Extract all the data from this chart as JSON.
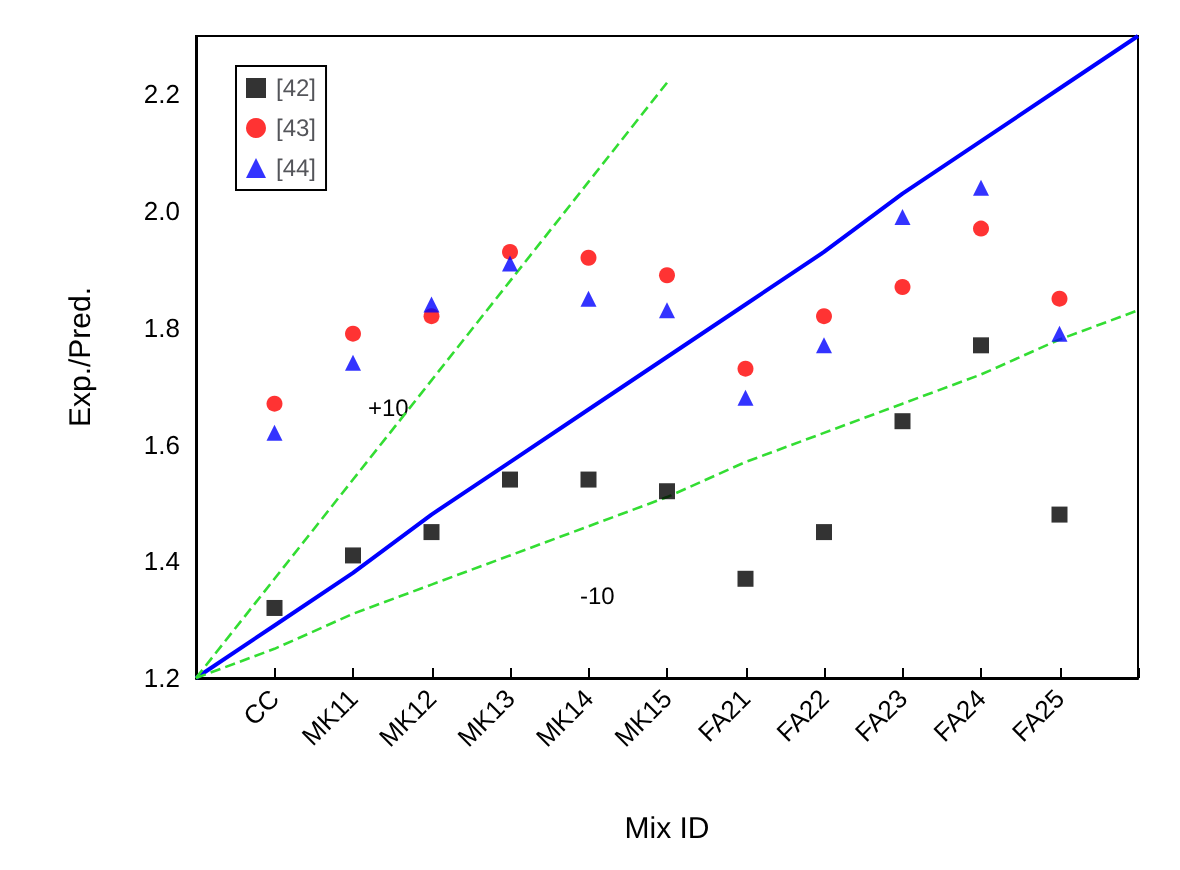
{
  "chart_data": {
    "type": "scatter",
    "xlabel": "Mix ID",
    "ylabel": "Exp./Pred.",
    "categories": [
      null,
      "CC",
      "MK11",
      "MK12",
      "MK13",
      "MK14",
      "MK15",
      "FA21",
      "FA22",
      "FA23",
      "FA24",
      "FA25",
      null
    ],
    "ylim": [
      1.2,
      2.3
    ],
    "yticks": [
      1.2,
      1.4,
      1.6,
      1.8,
      {
        "value": 2,
        "label": "2.0"
      },
      2.2
    ],
    "grid": false,
    "legend": "top left",
    "series": [
      {
        "name": "[42]",
        "color": "#000000",
        "marker": "square",
        "values": [
          null,
          1.32,
          1.41,
          1.45,
          1.54,
          1.54,
          1.52,
          1.37,
          1.45,
          1.64,
          1.77,
          1.48,
          null
        ]
      },
      {
        "name": "[43]",
        "color": "#ff0000",
        "marker": "circle",
        "values": [
          null,
          1.67,
          1.79,
          1.82,
          1.93,
          1.92,
          1.89,
          1.73,
          1.82,
          1.87,
          1.97,
          1.85,
          null
        ]
      },
      {
        "name": "[44]",
        "color": "#0000ff",
        "marker": "triangle",
        "values": [
          null,
          1.62,
          1.74,
          1.84,
          1.91,
          1.85,
          1.83,
          1.68,
          1.77,
          1.99,
          2.04,
          1.79,
          null
        ]
      },
      {
        "type": "line",
        "color": "#0000ff",
        "line_style": "solid",
        "marker": "none",
        "values": [
          1.2,
          1.29,
          1.38,
          1.48,
          1.57,
          1.66,
          1.75,
          1.84,
          1.93,
          2.03,
          2.12,
          2.21,
          2.3
        ]
      },
      {
        "type": "line",
        "color": "#33dd33",
        "line_style": "dashed",
        "marker": "none",
        "values": [
          1.2,
          1.37,
          1.54,
          1.71,
          1.88,
          2.05,
          2.22,
          null,
          null,
          null,
          null,
          null,
          null
        ]
      },
      {
        "type": "line",
        "color": "#33dd33",
        "line_style": "dashed",
        "marker": "none",
        "values": [
          1.2,
          1.25,
          1.31,
          1.36,
          1.41,
          1.46,
          1.51,
          1.57,
          1.62,
          1.67,
          1.72,
          1.78,
          1.83
        ]
      }
    ],
    "annotations": [
      "+10",
      "-10"
    ]
  }
}
